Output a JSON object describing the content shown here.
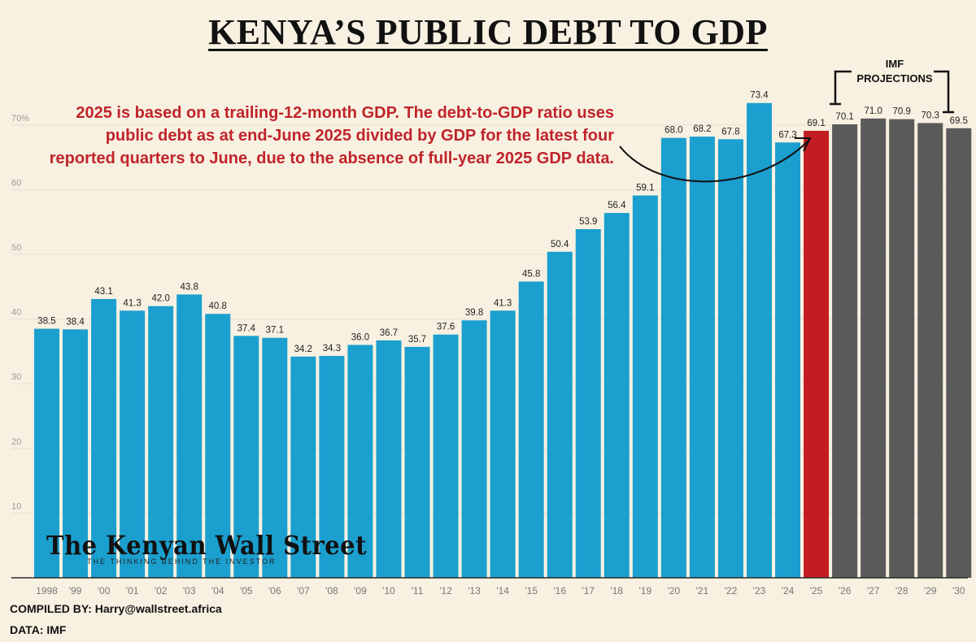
{
  "title": "KENYA’S PUBLIC DEBT TO GDP",
  "annotation": "2025 is based on a trailing-12-month GDP. The debt-to-GDP ratio uses public debt as at end-June 2025 divided by GDP for the latest four reported quarters to June, due to the absence of full-year 2025 GDP data.",
  "projection_label_line1": "IMF",
  "projection_label_line2": "PROJECTIONS",
  "logo": {
    "name": "The Kenyan Wall Street",
    "tagline": "THE THINKING BEHIND THE INVESTOR"
  },
  "footer": {
    "compiled_by": "COMPILED BY: Harry@wallstreet.africa",
    "data_source": "DATA: IMF"
  },
  "colors": {
    "historical": "#1b9fcf",
    "current": "#c21d22",
    "projection": "#5b5b5b",
    "gridline": "#e6e0d2",
    "background": "#f8f1e1"
  },
  "chart_data": {
    "type": "bar",
    "title": "KENYA’S PUBLIC DEBT TO GDP",
    "xlabel": "",
    "ylabel": "",
    "ylim": [
      0,
      75
    ],
    "yticks": [
      10,
      20,
      30,
      40,
      50,
      60,
      70
    ],
    "ytick_labels": [
      "10",
      "20",
      "30",
      "40",
      "50",
      "60",
      "70%"
    ],
    "grid": true,
    "categories": [
      "1998",
      "'99",
      "'00",
      "'01",
      "'02",
      "'03",
      "'04",
      "'05",
      "'06",
      "'07",
      "'08",
      "'09",
      "'10",
      "'11",
      "'12",
      "'13",
      "'14",
      "'15",
      "'16",
      "'17",
      "'18",
      "'19",
      "'20",
      "'21",
      "'22",
      "'23",
      "'24",
      "'25",
      "'26",
      "'27",
      "'28",
      "'29",
      "'30"
    ],
    "values": [
      38.5,
      38.4,
      43.1,
      41.3,
      42.0,
      43.8,
      40.8,
      37.4,
      37.1,
      34.2,
      34.3,
      36.0,
      36.7,
      35.7,
      37.6,
      39.8,
      41.3,
      45.8,
      50.4,
      53.9,
      56.4,
      59.1,
      68.0,
      68.2,
      67.8,
      73.4,
      67.3,
      69.1,
      70.1,
      71.0,
      70.9,
      70.3,
      69.5
    ],
    "value_labels": [
      "38.5",
      "38.4",
      "43.1",
      "41.3",
      "42.0",
      "43.8",
      "40.8",
      "37.4",
      "37.1",
      "34.2",
      "34.3",
      "36.0",
      "36.7",
      "35.7",
      "37.6",
      "39.8",
      "41.3",
      "45.8",
      "50.4",
      "53.9",
      "56.4",
      "59.1",
      "68.0",
      "68.2",
      "67.8",
      "73.4",
      "67.3",
      "69.1",
      "70.1",
      "71.0",
      "70.9",
      "70.3",
      "69.5"
    ],
    "bar_groups": [
      "historical",
      "historical",
      "historical",
      "historical",
      "historical",
      "historical",
      "historical",
      "historical",
      "historical",
      "historical",
      "historical",
      "historical",
      "historical",
      "historical",
      "historical",
      "historical",
      "historical",
      "historical",
      "historical",
      "historical",
      "historical",
      "historical",
      "historical",
      "historical",
      "historical",
      "historical",
      "historical",
      "current",
      "projection",
      "projection",
      "projection",
      "projection",
      "projection"
    ]
  }
}
